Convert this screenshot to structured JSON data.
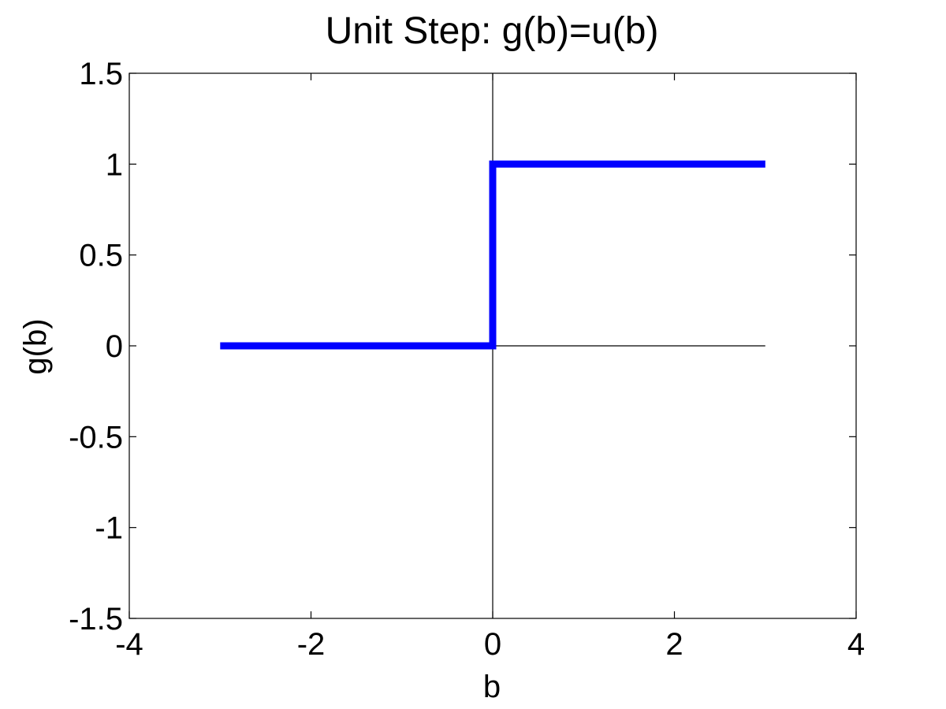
{
  "chart_data": {
    "type": "line",
    "title": "Unit Step: g(b)=u(b)",
    "xlabel": "b",
    "ylabel": "g(b)",
    "xlim": [
      -4,
      4
    ],
    "ylim": [
      -1.5,
      1.5
    ],
    "x_ticks": [
      "-4",
      "-2",
      "0",
      "2",
      "4"
    ],
    "y_ticks": [
      "1.5",
      "1",
      "0.5",
      "0",
      "-0.5",
      "-1",
      "-1.5"
    ],
    "grid": false,
    "reference_lines": [
      {
        "orientation": "vertical",
        "x": 0,
        "y_from": -1.5,
        "y_to": 1.5
      },
      {
        "orientation": "horizontal",
        "y": 0,
        "x_from": 0,
        "x_to": 3
      }
    ],
    "series": [
      {
        "color": "#0000ff",
        "points": [
          {
            "x": -3,
            "y": 0
          },
          {
            "x": 0,
            "y": 0
          },
          {
            "x": 0,
            "y": 1
          },
          {
            "x": 3,
            "y": 1
          }
        ]
      }
    ]
  }
}
